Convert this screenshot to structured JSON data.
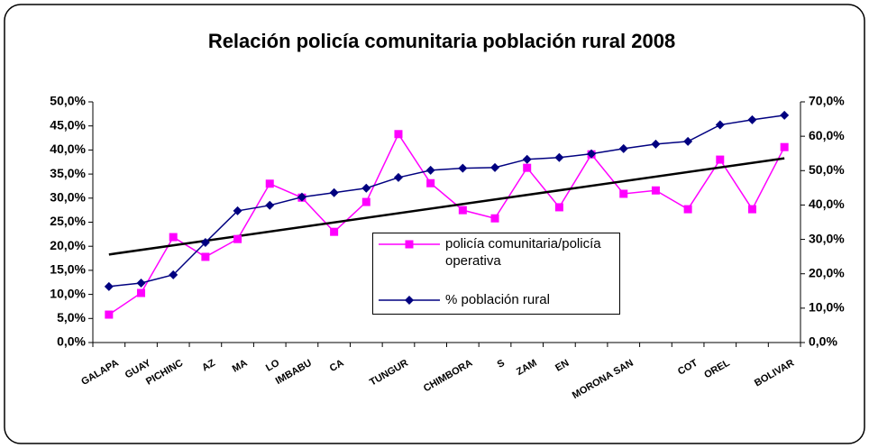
{
  "chart_data": {
    "type": "line",
    "title": "Relación policía comunitaria población rural 2008",
    "categories": [
      "GALAPA",
      "GUAY",
      "PICHINC",
      "AZ",
      "MA",
      "LO",
      "IMBABU",
      "CA",
      null,
      "TUNGUR",
      null,
      "CHIMBORA",
      "S",
      "ZAM",
      "EN",
      null,
      "MORONA SAN",
      null,
      "COT",
      "OREL",
      null,
      "BOLIVAR"
    ],
    "series": [
      {
        "name": "policía comunitaria/policía operativa",
        "color": "#ff00ff",
        "marker": "square",
        "axis": "y",
        "values": [
          5.8,
          10.3,
          21.9,
          17.8,
          21.5,
          33,
          30.1,
          23,
          29.2,
          43.3,
          33.1,
          27.5,
          25.8,
          36.3,
          28.1,
          39.1,
          30.9,
          31.6,
          27.7,
          38,
          27.7,
          40.6
        ]
      },
      {
        "name": "% población rural",
        "color": "#000080",
        "marker": "diamond",
        "axis": "y2",
        "values": [
          16.3,
          17.3,
          19.7,
          29.1,
          38.3,
          39.9,
          42.3,
          43.6,
          44.9,
          48,
          50.1,
          50.7,
          50.9,
          53.3,
          53.8,
          54.9,
          56.4,
          57.7,
          58.5,
          63.3,
          64.8,
          66.1
        ]
      }
    ],
    "trendline": {
      "series": 0,
      "color": "#000000"
    },
    "ylim": [
      0,
      50
    ],
    "yticks": [
      {
        "value": 0,
        "label": "0,0%"
      },
      {
        "value": 5,
        "label": "5,0%"
      },
      {
        "value": 10,
        "label": "10,0%"
      },
      {
        "value": 15,
        "label": "15,0%"
      },
      {
        "value": 20,
        "label": "20,0%"
      },
      {
        "value": 25,
        "label": "25,0%"
      },
      {
        "value": 30,
        "label": "30,0%"
      },
      {
        "value": 35,
        "label": "35,0%"
      },
      {
        "value": 40,
        "label": "40,0%"
      },
      {
        "value": 45,
        "label": "45,0%"
      },
      {
        "value": 50,
        "label": "50,0%"
      }
    ],
    "y2lim": [
      0,
      70
    ],
    "y2ticks": [
      {
        "value": 0,
        "label": "0,0%"
      },
      {
        "value": 10,
        "label": "10,0%"
      },
      {
        "value": 20,
        "label": "20,0%"
      },
      {
        "value": 30,
        "label": "30,0%"
      },
      {
        "value": 40,
        "label": "40,0%"
      },
      {
        "value": 50,
        "label": "50,0%"
      },
      {
        "value": 60,
        "label": "60,0%"
      },
      {
        "value": 70,
        "label": "70,0%"
      }
    ],
    "grid": false
  }
}
